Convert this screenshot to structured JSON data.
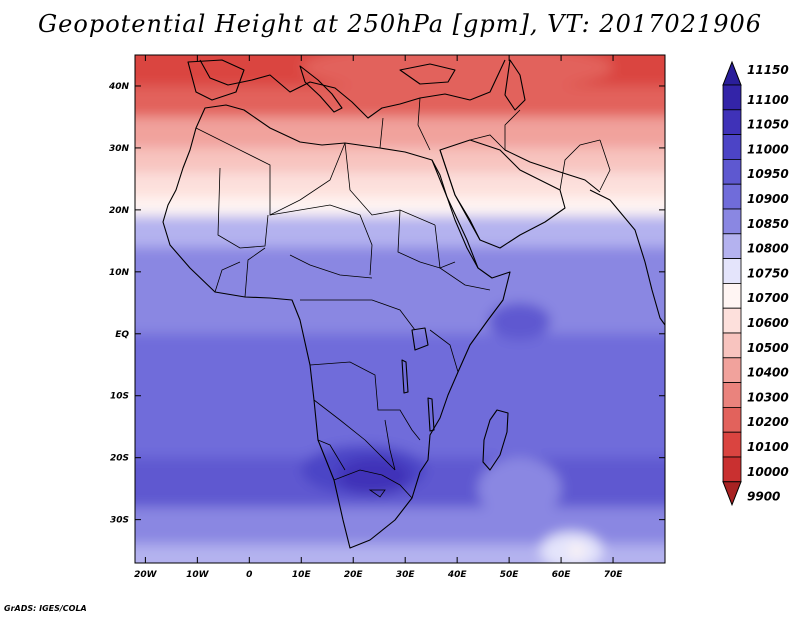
{
  "title": "Geopotential Height at 250hPa [gpm], VT: 2017021906",
  "credit": "GrADS: IGES/COLA",
  "map": {
    "lon_range": [
      -22,
      80
    ],
    "lat_range": [
      -37,
      45
    ],
    "lat_ticks": [
      {
        "lat": 40,
        "label": "40N"
      },
      {
        "lat": 30,
        "label": "30N"
      },
      {
        "lat": 20,
        "label": "20N"
      },
      {
        "lat": 10,
        "label": "10N"
      },
      {
        "lat": 0,
        "label": "EQ"
      },
      {
        "lat": -10,
        "label": "10S"
      },
      {
        "lat": -20,
        "label": "20S"
      },
      {
        "lat": -30,
        "label": "30S"
      }
    ],
    "lon_ticks": [
      {
        "lon": -20,
        "label": "20W"
      },
      {
        "lon": -10,
        "label": "10W"
      },
      {
        "lon": 0,
        "label": "0"
      },
      {
        "lon": 10,
        "label": "10E"
      },
      {
        "lon": 20,
        "label": "20E"
      },
      {
        "lon": 30,
        "label": "30E"
      },
      {
        "lon": 40,
        "label": "40E"
      },
      {
        "lon": 50,
        "label": "50E"
      },
      {
        "lon": 60,
        "label": "60E"
      },
      {
        "lon": 70,
        "label": "70E"
      }
    ],
    "field_bands": [
      {
        "lat": 45,
        "value": 10100
      },
      {
        "lat": 40,
        "value": 10200
      },
      {
        "lat": 35,
        "value": 10400
      },
      {
        "lat": 30,
        "value": 10500
      },
      {
        "lat": 26,
        "value": 10600
      },
      {
        "lat": 22,
        "value": 10700
      },
      {
        "lat": 19,
        "value": 10800
      },
      {
        "lat": 14,
        "value": 10850
      },
      {
        "lat": 0,
        "value": 10900
      },
      {
        "lat": -12,
        "value": 10900
      },
      {
        "lat": -20,
        "value": 10950
      },
      {
        "lat": -28,
        "value": 10850
      },
      {
        "lat": -34,
        "value": 10800
      },
      {
        "lat": -37,
        "value": 10750
      }
    ],
    "features": [
      {
        "name": "north-low",
        "lon": 65,
        "lat": 44,
        "rlon": 14,
        "rlat": 4,
        "value": 10100
      },
      {
        "name": "north-low-west",
        "lon": 40,
        "lat": 43,
        "rlon": 30,
        "rlat": 4,
        "value": 10200
      },
      {
        "name": "southern-africa-high",
        "lon": 22,
        "lat": -22,
        "rlon": 12,
        "rlat": 4,
        "value": 11000
      },
      {
        "name": "southern-africa-high-core",
        "lon": 24,
        "lat": -23,
        "rlon": 7,
        "rlat": 3,
        "value": 11050
      },
      {
        "name": "arabian-sea-max",
        "lon": 52,
        "lat": 2,
        "rlon": 6,
        "rlat": 3,
        "value": 10950
      },
      {
        "name": "indian-ocean-low",
        "lon": 52,
        "lat": -25,
        "rlon": 8,
        "rlat": 5,
        "value": 10850
      },
      {
        "name": "southeast-low",
        "lon": 62,
        "lat": -35,
        "rlon": 6,
        "rlat": 3,
        "value": 10750
      },
      {
        "name": "southeast-low-core",
        "lon": 63,
        "lat": -35,
        "rlon": 1.5,
        "rlat": 1,
        "value": 10700
      }
    ]
  },
  "colorbar": {
    "levels": [
      {
        "label": "11150",
        "color": "#2a1e9a"
      },
      {
        "label": "11100",
        "color": "#3324a8"
      },
      {
        "label": "11050",
        "color": "#3f32b8"
      },
      {
        "label": "11000",
        "color": "#4c44c6"
      },
      {
        "label": "10950",
        "color": "#5e58d0"
      },
      {
        "label": "10900",
        "color": "#706cda"
      },
      {
        "label": "10850",
        "color": "#8a87e2"
      },
      {
        "label": "10800",
        "color": "#b4b2ef"
      },
      {
        "label": "10750",
        "color": "#e4e4fb"
      },
      {
        "label": "10700",
        "color": "#fff5f3"
      },
      {
        "label": "10600",
        "color": "#fde0dc"
      },
      {
        "label": "10500",
        "color": "#f8c4bf"
      },
      {
        "label": "10400",
        "color": "#f1a29c"
      },
      {
        "label": "10300",
        "color": "#ea837d"
      },
      {
        "label": "10200",
        "color": "#e2625c"
      },
      {
        "label": "10100",
        "color": "#da4440"
      },
      {
        "label": "10000",
        "color": "#c93030"
      },
      {
        "label": "9900",
        "color": "#a82222"
      }
    ]
  }
}
